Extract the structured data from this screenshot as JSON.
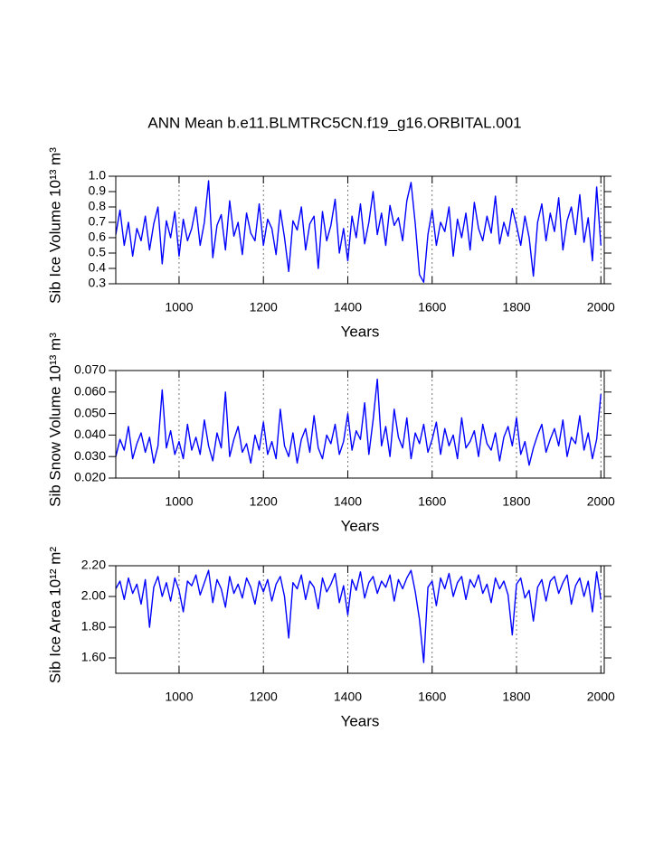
{
  "title": "ANN Mean b.e11.BLMTRC5CN.f19_g16.ORBITAL.001",
  "chart_data": [
    {
      "type": "line",
      "ylabel": "Sib Ice Volume 10¹³ m³",
      "xlabel": "Years",
      "xlim": [
        850,
        2008
      ],
      "xticks": [
        1000,
        1200,
        1400,
        1600,
        1800,
        2000
      ],
      "ylim": [
        0.3,
        1.0
      ],
      "yticks": [
        0.3,
        0.4,
        0.5,
        0.6,
        0.7,
        0.8,
        0.9,
        {
          "value": 1.0,
          "label": "1.0"
        }
      ],
      "grid": true,
      "x": [
        850,
        860,
        870,
        880,
        890,
        900,
        910,
        920,
        930,
        940,
        950,
        960,
        970,
        980,
        990,
        1000,
        1010,
        1020,
        1030,
        1040,
        1050,
        1060,
        1070,
        1080,
        1090,
        1100,
        1110,
        1120,
        1130,
        1140,
        1150,
        1160,
        1170,
        1180,
        1190,
        1200,
        1210,
        1220,
        1230,
        1240,
        1250,
        1260,
        1270,
        1280,
        1290,
        1300,
        1310,
        1320,
        1330,
        1340,
        1350,
        1360,
        1370,
        1380,
        1390,
        1400,
        1410,
        1420,
        1430,
        1440,
        1450,
        1460,
        1470,
        1480,
        1490,
        1500,
        1510,
        1520,
        1530,
        1540,
        1550,
        1560,
        1570,
        1580,
        1590,
        1600,
        1610,
        1620,
        1630,
        1640,
        1650,
        1660,
        1670,
        1680,
        1690,
        1700,
        1710,
        1720,
        1730,
        1740,
        1750,
        1760,
        1770,
        1780,
        1790,
        1800,
        1810,
        1820,
        1830,
        1840,
        1850,
        1860,
        1870,
        1880,
        1890,
        1900,
        1910,
        1920,
        1930,
        1940,
        1950,
        1960,
        1970,
        1980,
        1990,
        2000
      ],
      "series": [
        {
          "color": "#0000ff",
          "values": [
            0.62,
            0.78,
            0.55,
            0.7,
            0.48,
            0.66,
            0.58,
            0.74,
            0.52,
            0.69,
            0.8,
            0.43,
            0.71,
            0.6,
            0.77,
            0.48,
            0.72,
            0.58,
            0.66,
            0.8,
            0.55,
            0.7,
            0.97,
            0.47,
            0.68,
            0.75,
            0.52,
            0.84,
            0.61,
            0.7,
            0.49,
            0.76,
            0.63,
            0.58,
            0.82,
            0.55,
            0.72,
            0.66,
            0.49,
            0.78,
            0.6,
            0.38,
            0.71,
            0.65,
            0.8,
            0.52,
            0.69,
            0.74,
            0.4,
            0.77,
            0.58,
            0.68,
            0.85,
            0.5,
            0.66,
            0.45,
            0.74,
            0.6,
            0.82,
            0.56,
            0.7,
            0.9,
            0.62,
            0.76,
            0.55,
            0.81,
            0.68,
            0.73,
            0.58,
            0.84,
            0.96,
            0.69,
            0.36,
            0.31,
            0.62,
            0.78,
            0.55,
            0.7,
            0.64,
            0.8,
            0.48,
            0.72,
            0.6,
            0.76,
            0.52,
            0.83,
            0.66,
            0.58,
            0.74,
            0.63,
            0.87,
            0.56,
            0.7,
            0.61,
            0.79,
            0.68,
            0.55,
            0.74,
            0.6,
            0.35,
            0.7,
            0.82,
            0.58,
            0.76,
            0.64,
            0.86,
            0.52,
            0.71,
            0.8,
            0.62,
            0.88,
            0.57,
            0.73,
            0.45,
            0.93,
            0.55
          ]
        }
      ]
    },
    {
      "type": "line",
      "ylabel": "Sib Snow Volume 10¹³ m³",
      "xlabel": "Years",
      "xlim": [
        850,
        2008
      ],
      "xticks": [
        1000,
        1200,
        1400,
        1600,
        1800,
        2000
      ],
      "ylim": [
        0.02,
        0.07
      ],
      "yticks": [
        {
          "value": 0.02,
          "label": "0.020"
        },
        {
          "value": 0.03,
          "label": "0.030"
        },
        {
          "value": 0.04,
          "label": "0.040"
        },
        {
          "value": 0.05,
          "label": "0.050"
        },
        {
          "value": 0.06,
          "label": "0.060"
        },
        {
          "value": 0.07,
          "label": "0.070"
        }
      ],
      "grid": true,
      "x": [
        850,
        860,
        870,
        880,
        890,
        900,
        910,
        920,
        930,
        940,
        950,
        960,
        970,
        980,
        990,
        1000,
        1010,
        1020,
        1030,
        1040,
        1050,
        1060,
        1070,
        1080,
        1090,
        1100,
        1110,
        1120,
        1130,
        1140,
        1150,
        1160,
        1170,
        1180,
        1190,
        1200,
        1210,
        1220,
        1230,
        1240,
        1250,
        1260,
        1270,
        1280,
        1290,
        1300,
        1310,
        1320,
        1330,
        1340,
        1350,
        1360,
        1370,
        1380,
        1390,
        1400,
        1410,
        1420,
        1430,
        1440,
        1450,
        1460,
        1470,
        1480,
        1490,
        1500,
        1510,
        1520,
        1530,
        1540,
        1550,
        1560,
        1570,
        1580,
        1590,
        1600,
        1610,
        1620,
        1630,
        1640,
        1650,
        1660,
        1670,
        1680,
        1690,
        1700,
        1710,
        1720,
        1730,
        1740,
        1750,
        1760,
        1770,
        1780,
        1790,
        1800,
        1810,
        1820,
        1830,
        1840,
        1850,
        1860,
        1870,
        1880,
        1890,
        1900,
        1910,
        1920,
        1930,
        1940,
        1950,
        1960,
        1970,
        1980,
        1990,
        2000
      ],
      "series": [
        {
          "color": "#0000ff",
          "values": [
            0.03,
            0.038,
            0.033,
            0.044,
            0.029,
            0.036,
            0.041,
            0.032,
            0.039,
            0.027,
            0.035,
            0.061,
            0.034,
            0.042,
            0.031,
            0.037,
            0.029,
            0.045,
            0.033,
            0.039,
            0.031,
            0.047,
            0.035,
            0.028,
            0.041,
            0.034,
            0.06,
            0.03,
            0.038,
            0.044,
            0.032,
            0.036,
            0.027,
            0.04,
            0.033,
            0.046,
            0.031,
            0.037,
            0.029,
            0.052,
            0.035,
            0.03,
            0.041,
            0.027,
            0.038,
            0.043,
            0.032,
            0.049,
            0.034,
            0.029,
            0.04,
            0.036,
            0.045,
            0.031,
            0.037,
            0.05,
            0.033,
            0.042,
            0.038,
            0.055,
            0.031,
            0.047,
            0.066,
            0.035,
            0.044,
            0.03,
            0.052,
            0.039,
            0.034,
            0.048,
            0.029,
            0.041,
            0.036,
            0.045,
            0.032,
            0.038,
            0.046,
            0.031,
            0.043,
            0.035,
            0.04,
            0.029,
            0.048,
            0.034,
            0.037,
            0.042,
            0.03,
            0.045,
            0.036,
            0.033,
            0.041,
            0.028,
            0.039,
            0.044,
            0.035,
            0.048,
            0.031,
            0.037,
            0.026,
            0.034,
            0.04,
            0.045,
            0.032,
            0.038,
            0.043,
            0.035,
            0.047,
            0.03,
            0.039,
            0.036,
            0.049,
            0.033,
            0.041,
            0.029,
            0.038,
            0.059
          ]
        }
      ]
    },
    {
      "type": "line",
      "ylabel": "Sib Ice Area 10¹² m²",
      "xlabel": "Years",
      "xlim": [
        850,
        2008
      ],
      "xticks": [
        1000,
        1200,
        1400,
        1600,
        1800,
        2000
      ],
      "ylim": [
        1.5,
        2.2
      ],
      "yticks": [
        {
          "value": 1.6,
          "label": "1.60"
        },
        {
          "value": 1.8,
          "label": "1.80"
        },
        {
          "value": 2.0,
          "label": "2.00"
        },
        {
          "value": 2.2,
          "label": "2.20"
        }
      ],
      "grid": true,
      "x": [
        850,
        860,
        870,
        880,
        890,
        900,
        910,
        920,
        930,
        940,
        950,
        960,
        970,
        980,
        990,
        1000,
        1010,
        1020,
        1030,
        1040,
        1050,
        1060,
        1070,
        1080,
        1090,
        1100,
        1110,
        1120,
        1130,
        1140,
        1150,
        1160,
        1170,
        1180,
        1190,
        1200,
        1210,
        1220,
        1230,
        1240,
        1250,
        1260,
        1270,
        1280,
        1290,
        1300,
        1310,
        1320,
        1330,
        1340,
        1350,
        1360,
        1370,
        1380,
        1390,
        1400,
        1410,
        1420,
        1430,
        1440,
        1450,
        1460,
        1470,
        1480,
        1490,
        1500,
        1510,
        1520,
        1530,
        1540,
        1550,
        1560,
        1570,
        1580,
        1590,
        1600,
        1610,
        1620,
        1630,
        1640,
        1650,
        1660,
        1670,
        1680,
        1690,
        1700,
        1710,
        1720,
        1730,
        1740,
        1750,
        1760,
        1770,
        1780,
        1790,
        1800,
        1810,
        1820,
        1830,
        1840,
        1850,
        1860,
        1870,
        1880,
        1890,
        1900,
        1910,
        1920,
        1930,
        1940,
        1950,
        1960,
        1970,
        1980,
        1990,
        2000
      ],
      "series": [
        {
          "color": "#0000ff",
          "values": [
            2.05,
            2.1,
            1.98,
            2.12,
            2.02,
            2.08,
            1.95,
            2.11,
            1.8,
            2.06,
            2.13,
            2.0,
            2.09,
            1.97,
            2.12,
            2.04,
            1.9,
            2.1,
            2.07,
            2.14,
            2.01,
            2.09,
            2.17,
            1.96,
            2.11,
            2.05,
            1.93,
            2.13,
            2.02,
            2.08,
            1.99,
            2.12,
            2.06,
            1.95,
            2.1,
            2.03,
            2.11,
            1.97,
            2.08,
            2.13,
            2.0,
            1.73,
            2.09,
            2.05,
            2.14,
            1.98,
            2.1,
            2.06,
            1.92,
            2.12,
            2.03,
            2.08,
            2.15,
            1.96,
            2.07,
            1.88,
            2.11,
            2.04,
            2.16,
            1.99,
            2.09,
            2.13,
            2.02,
            2.1,
            2.06,
            2.14,
            1.97,
            2.11,
            2.05,
            2.12,
            2.17,
            2.03,
            1.85,
            1.57,
            2.06,
            2.1,
            1.94,
            2.12,
            2.05,
            2.15,
            2.0,
            2.09,
            2.13,
            1.98,
            2.11,
            2.06,
            2.14,
            2.02,
            2.08,
            1.96,
            2.12,
            2.05,
            2.1,
            2.01,
            1.75,
            2.08,
            2.12,
            1.99,
            2.04,
            1.84,
            2.06,
            2.11,
            1.97,
            2.1,
            2.13,
            2.02,
            2.09,
            2.14,
            1.95,
            2.07,
            2.12,
            2.0,
            2.1,
            1.9,
            2.16,
            1.98
          ]
        }
      ]
    }
  ]
}
